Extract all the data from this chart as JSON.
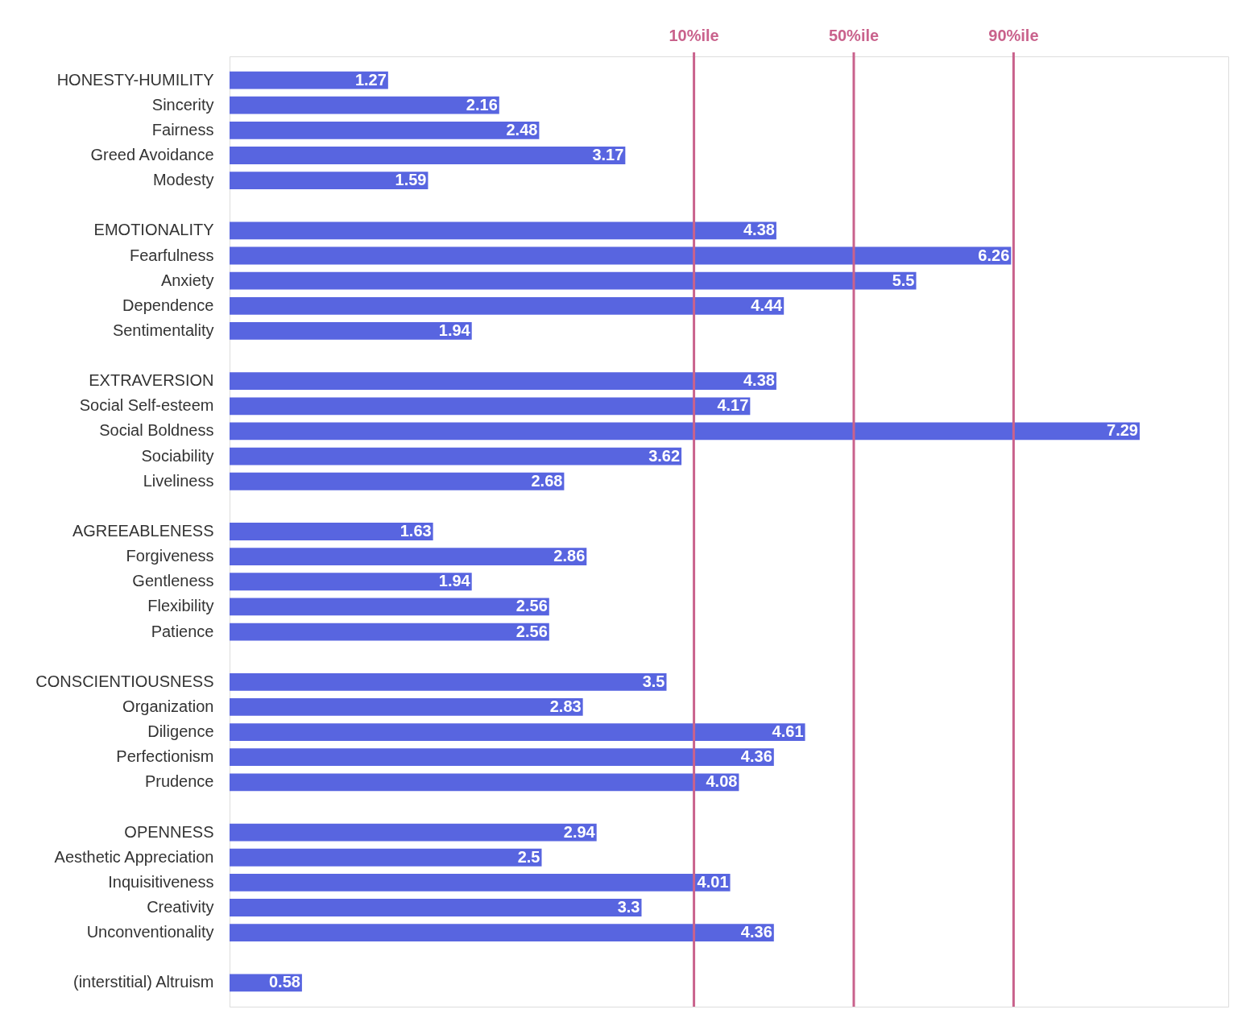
{
  "chart_data": {
    "type": "bar",
    "orientation": "horizontal",
    "data_labels": true,
    "tick_labels": "y",
    "grid": false,
    "color": "#5865e0",
    "categories": [
      "HONESTY-HUMILITY",
      "Sincerity",
      "Fairness",
      "Greed Avoidance",
      "Modesty",
      null,
      "EMOTIONALITY",
      "Fearfulness",
      "Anxiety",
      "Dependence",
      "Sentimentality",
      null,
      "EXTRAVERSION",
      "Social Self-esteem",
      "Social Boldness",
      "Sociability",
      "Liveliness",
      null,
      "AGREEABLENESS",
      "Forgiveness",
      "Gentleness",
      "Flexibility",
      "Patience",
      null,
      "CONSCIENTIOUSNESS",
      "Organization",
      "Diligence",
      "Perfectionism",
      "Prudence",
      null,
      "OPENNESS",
      "Aesthetic Appreciation",
      "Inquisitiveness",
      "Creativity",
      "Unconventionality",
      null,
      "(interstitial) Altruism"
    ],
    "values": [
      1.27,
      2.16,
      2.48,
      3.17,
      1.59,
      null,
      4.38,
      6.26,
      5.5,
      4.44,
      1.94,
      null,
      4.38,
      4.17,
      7.29,
      3.62,
      2.68,
      null,
      1.63,
      2.86,
      1.94,
      2.56,
      2.56,
      null,
      3.5,
      2.83,
      4.61,
      4.36,
      4.08,
      null,
      2.94,
      2.5,
      4.01,
      3.3,
      4.36,
      null,
      0.58
    ],
    "xlim": [
      0,
      8
    ],
    "ref_lines": [
      {
        "axis": "x",
        "value": 3.72,
        "label": "10%ile",
        "color": "#c9628c"
      },
      {
        "axis": "x",
        "value": 5.0,
        "label": "50%ile",
        "color": "#c9628c"
      },
      {
        "axis": "x",
        "value": 6.28,
        "label": "90%ile",
        "color": "#c9628c"
      }
    ]
  }
}
